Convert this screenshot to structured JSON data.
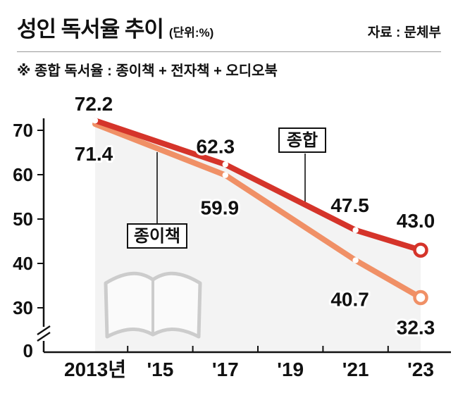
{
  "header": {
    "title": "성인 독서율 추이",
    "unit": "(단위:%)",
    "source": "자료 : 문체부",
    "note": "※ 종합 독서율 : 종이책 + 전자책 + 오디오북"
  },
  "chart_data": {
    "type": "line",
    "title": "성인 독서율 추이 (단위:%)",
    "x": [
      2013,
      2017,
      2021,
      2023
    ],
    "x_tick_labels": [
      {
        "year": 2013,
        "label": "2013년"
      },
      {
        "year": 2015,
        "label": "'15"
      },
      {
        "year": 2017,
        "label": "'17"
      },
      {
        "year": 2019,
        "label": "'19"
      },
      {
        "year": 2021,
        "label": "'21"
      },
      {
        "year": 2023,
        "label": "'23"
      }
    ],
    "y_ticks": [
      70,
      60,
      50,
      40,
      30
    ],
    "y_zero_label": "0",
    "axis_break": true,
    "ylim": [
      30,
      75
    ],
    "grid": false,
    "legend_position": "inline-callout-boxes",
    "area_fill": "#f3f3f3",
    "series": [
      {
        "name": "종합",
        "color": "#d5342a",
        "values": [
          72.2,
          62.3,
          47.5,
          43.0
        ]
      },
      {
        "name": "종이책",
        "color": "#f09066",
        "values": [
          71.4,
          59.9,
          40.7,
          32.3
        ]
      }
    ]
  }
}
